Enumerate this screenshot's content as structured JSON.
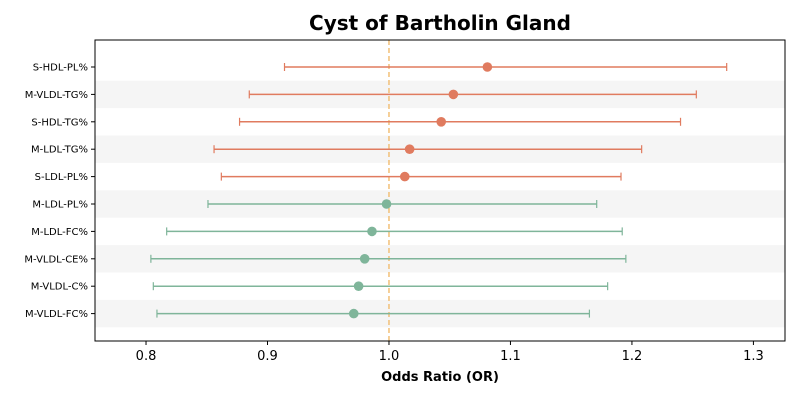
{
  "chart_data": {
    "type": "forest",
    "title": "Cyst of Bartholin Gland",
    "xlabel": "Odds Ratio (OR)",
    "xlim": [
      0.758,
      1.326
    ],
    "xticks": [
      0.8,
      0.9,
      1.0,
      1.1,
      1.2,
      1.3
    ],
    "xtick_labels": [
      "0.8",
      "0.9",
      "1.0",
      "1.1",
      "1.2",
      "1.3"
    ],
    "reference_line": 1.0,
    "reference_color": "#f2c078",
    "colors": {
      "risk": "#e07b5f",
      "protective": "#7fb59a",
      "band": "#f5f5f5"
    },
    "grid": false,
    "rows": [
      {
        "label": "S-HDL-PL%",
        "or": 1.081,
        "lo": 0.914,
        "hi": 1.278,
        "group": "risk"
      },
      {
        "label": "M-VLDL-TG%",
        "or": 1.053,
        "lo": 0.885,
        "hi": 1.253,
        "group": "risk"
      },
      {
        "label": "S-HDL-TG%",
        "or": 1.043,
        "lo": 0.877,
        "hi": 1.24,
        "group": "risk"
      },
      {
        "label": "M-LDL-TG%",
        "or": 1.017,
        "lo": 0.856,
        "hi": 1.208,
        "group": "risk"
      },
      {
        "label": "S-LDL-PL%",
        "or": 1.013,
        "lo": 0.862,
        "hi": 1.191,
        "group": "risk"
      },
      {
        "label": "M-LDL-PL%",
        "or": 0.998,
        "lo": 0.851,
        "hi": 1.171,
        "group": "protective"
      },
      {
        "label": "M-LDL-FC%",
        "or": 0.986,
        "lo": 0.817,
        "hi": 1.192,
        "group": "protective"
      },
      {
        "label": "M-VLDL-CE%",
        "or": 0.98,
        "lo": 0.804,
        "hi": 1.195,
        "group": "protective"
      },
      {
        "label": "M-VLDL-C%",
        "or": 0.975,
        "lo": 0.806,
        "hi": 1.18,
        "group": "protective"
      },
      {
        "label": "M-VLDL-FC%",
        "or": 0.971,
        "lo": 0.809,
        "hi": 1.165,
        "group": "protective"
      }
    ]
  }
}
